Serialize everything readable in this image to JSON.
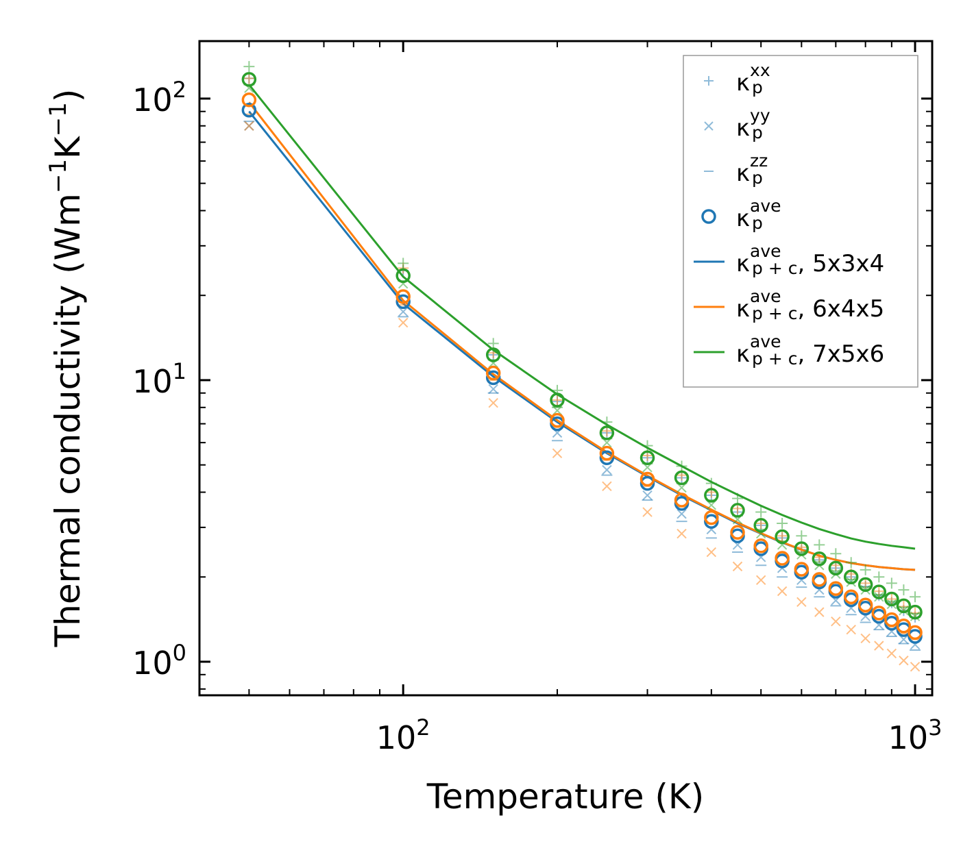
{
  "chart_data": {
    "type": "scatter",
    "xlabel": "Temperature (K)",
    "ylabel_parts": {
      "pre": "Thermal conductivity (Wm",
      "sup1": "−1",
      "mid": "K",
      "sup2": "−1",
      "post": ")"
    },
    "x_scale": "log",
    "y_scale": "log",
    "xlim": [
      40,
      1080
    ],
    "ylim": [
      0.76,
      160
    ],
    "x_ticks": [
      {
        "value": 100,
        "base": "10",
        "exp": "2"
      },
      {
        "value": 1000,
        "base": "10",
        "exp": "3"
      }
    ],
    "y_ticks": [
      {
        "value": 1,
        "base": "10",
        "exp": "0"
      },
      {
        "value": 10,
        "base": "10",
        "exp": "1"
      },
      {
        "value": 100,
        "base": "10",
        "exp": "2"
      }
    ],
    "colors": {
      "blue": "#1f77b4",
      "orange": "#ff7f0e",
      "green": "#2ca02c"
    },
    "x": [
      50,
      100,
      150,
      200,
      250,
      300,
      350,
      400,
      450,
      500,
      550,
      600,
      650,
      700,
      750,
      800,
      850,
      900,
      950,
      1000
    ],
    "series": [
      {
        "name": "5x3x4",
        "color_key": "blue",
        "xx": [
          118,
          24.5,
          12.3,
          8.4,
          6.5,
          5.3,
          4.5,
          3.9,
          3.4,
          3.05,
          2.75,
          2.5,
          2.3,
          2.15,
          2.0,
          1.85,
          1.72,
          1.62,
          1.52,
          1.44
        ],
        "yy": [
          80,
          17.5,
          9.3,
          6.5,
          4.8,
          3.9,
          3.35,
          2.95,
          2.6,
          2.35,
          2.15,
          1.95,
          1.8,
          1.65,
          1.55,
          1.45,
          1.35,
          1.28,
          1.2,
          1.15
        ],
        "zz": [
          83,
          16.8,
          9.0,
          6.1,
          4.6,
          3.75,
          3.15,
          2.75,
          2.45,
          2.2,
          2.0,
          1.84,
          1.7,
          1.58,
          1.47,
          1.38,
          1.3,
          1.23,
          1.16,
          1.1
        ],
        "ave": [
          91,
          19,
          10.2,
          7.0,
          5.3,
          4.3,
          3.65,
          3.15,
          2.8,
          2.52,
          2.28,
          2.08,
          1.92,
          1.78,
          1.66,
          1.55,
          1.45,
          1.37,
          1.3,
          1.23
        ],
        "fit": [
          90,
          18.7,
          10.3,
          7.1,
          5.5,
          4.55,
          3.9,
          3.45,
          3.1,
          2.85,
          2.65,
          2.5,
          2.38,
          2.3,
          2.24,
          2.2,
          2.17,
          2.15,
          2.13,
          2.12
        ]
      },
      {
        "name": "6x4x5",
        "color_key": "orange",
        "xx": [
          118,
          25,
          12.5,
          8.5,
          6.6,
          5.4,
          4.6,
          4.0,
          3.5,
          3.1,
          2.8,
          2.55,
          2.35,
          2.2,
          2.05,
          1.9,
          1.78,
          1.67,
          1.57,
          1.49
        ],
        "yy": [
          80,
          16,
          8.3,
          5.5,
          4.2,
          3.4,
          2.85,
          2.45,
          2.18,
          1.95,
          1.78,
          1.63,
          1.5,
          1.39,
          1.3,
          1.21,
          1.14,
          1.07,
          1.01,
          0.96
        ],
        "zz": [
          88,
          18.5,
          10.0,
          6.8,
          5.2,
          4.2,
          3.55,
          3.1,
          2.75,
          2.45,
          2.22,
          2.02,
          1.86,
          1.72,
          1.6,
          1.5,
          1.41,
          1.33,
          1.26,
          1.2
        ],
        "ave": [
          99,
          19.8,
          10.6,
          7.2,
          5.5,
          4.45,
          3.75,
          3.25,
          2.88,
          2.58,
          2.33,
          2.13,
          1.96,
          1.82,
          1.7,
          1.59,
          1.49,
          1.41,
          1.34,
          1.27
        ],
        "fit": [
          97,
          19.2,
          10.5,
          7.2,
          5.55,
          4.58,
          3.93,
          3.47,
          3.12,
          2.86,
          2.66,
          2.5,
          2.38,
          2.3,
          2.24,
          2.2,
          2.17,
          2.15,
          2.13,
          2.12
        ]
      },
      {
        "name": "7x5x6",
        "color_key": "green",
        "xx": [
          130,
          26,
          13.5,
          9.2,
          7.1,
          5.85,
          4.95,
          4.3,
          3.8,
          3.4,
          3.1,
          2.8,
          2.6,
          2.42,
          2.25,
          2.12,
          2.0,
          1.9,
          1.8,
          1.7
        ],
        "yy": [
          109,
          22,
          11.5,
          7.8,
          6.0,
          4.9,
          4.15,
          3.6,
          3.2,
          2.85,
          2.6,
          2.4,
          2.2,
          2.05,
          1.92,
          1.8,
          1.7,
          1.6,
          1.52,
          1.45
        ],
        "zz": [
          112,
          22.5,
          11.8,
          8.0,
          6.2,
          5.05,
          4.3,
          3.75,
          3.3,
          2.95,
          2.68,
          2.45,
          2.26,
          2.1,
          1.96,
          1.84,
          1.73,
          1.64,
          1.56,
          1.48
        ],
        "ave": [
          117,
          23.5,
          12.3,
          8.5,
          6.5,
          5.3,
          4.5,
          3.9,
          3.45,
          3.05,
          2.78,
          2.52,
          2.32,
          2.15,
          2.0,
          1.88,
          1.77,
          1.67,
          1.58,
          1.5
        ],
        "fit": [
          112,
          23.3,
          12.8,
          8.9,
          6.95,
          5.75,
          4.95,
          4.35,
          3.92,
          3.58,
          3.32,
          3.12,
          2.96,
          2.84,
          2.74,
          2.67,
          2.62,
          2.58,
          2.55,
          2.52
        ]
      }
    ],
    "legend": {
      "placement": "top-right",
      "kappa": "κ",
      "entries": [
        {
          "sub": "p",
          "sup": "xx",
          "suffix": ""
        },
        {
          "sub": "p",
          "sup": "yy",
          "suffix": ""
        },
        {
          "sub": "p",
          "sup": "zz",
          "suffix": ""
        },
        {
          "sub": "p",
          "sup": "ave",
          "suffix": ""
        },
        {
          "sub": "p + c",
          "sup": "ave",
          "suffix": ", 5x3x4"
        },
        {
          "sub": "p + c",
          "sup": "ave",
          "suffix": ", 6x4x5"
        },
        {
          "sub": "p + c",
          "sup": "ave",
          "suffix": ", 7x5x6"
        }
      ]
    }
  }
}
